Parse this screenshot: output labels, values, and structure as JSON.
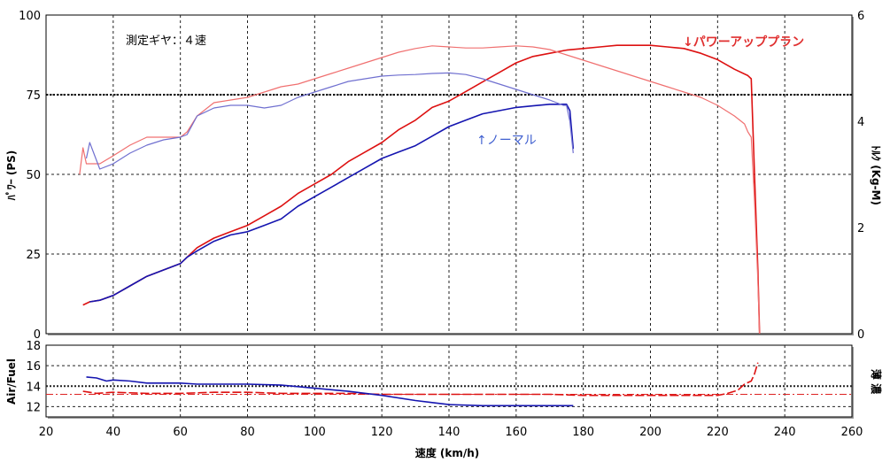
{
  "chart_data": [
    {
      "type": "line",
      "title": "",
      "gear_label": "測定ギヤ：４速",
      "xlabel": "速度 (km/h)",
      "ylabel_left": "ﾊﾟﾜｰ (PS)",
      "ylabel_right": "ﾄﾙｸ (Kg-M)",
      "xlim": [
        20,
        260
      ],
      "xticks": [
        20,
        40,
        60,
        80,
        100,
        120,
        140,
        160,
        180,
        200,
        220,
        240,
        260
      ],
      "ylim_left": [
        0,
        100
      ],
      "yticks_left": [
        0,
        25,
        50,
        75,
        100
      ],
      "ylim_right": [
        0,
        6
      ],
      "yticks_right": [
        0,
        2,
        4,
        6
      ],
      "grid": true,
      "reference_line_left": 75,
      "annotations": {
        "power_up": "↓パワーアッププラン",
        "normal": "↑ノーマル"
      },
      "colors": {
        "power_up": "#dd1111",
        "power_up_light": "#f07070",
        "normal": "#1515b0",
        "normal_light": "#7070d0"
      },
      "series": [
        {
          "name": "パワーアッププラン",
          "quantity": "power",
          "axis": "left",
          "x": [
            31,
            33,
            36,
            40,
            45,
            50,
            55,
            60,
            62,
            65,
            70,
            75,
            80,
            85,
            90,
            95,
            100,
            105,
            110,
            115,
            120,
            125,
            130,
            135,
            140,
            145,
            150,
            155,
            160,
            165,
            170,
            175,
            180,
            185,
            190,
            195,
            200,
            205,
            210,
            215,
            220,
            225,
            229,
            230,
            231,
            232,
            232.5
          ],
          "y": [
            9,
            10,
            10.5,
            12,
            15,
            18,
            20,
            22,
            24,
            27,
            30,
            32,
            34,
            37,
            40,
            44,
            47,
            50,
            54,
            57,
            60,
            64,
            67,
            71,
            73,
            76,
            79,
            82,
            85,
            87,
            88,
            89,
            89.5,
            90,
            90.5,
            90.5,
            90.5,
            90,
            89.5,
            88,
            86,
            83,
            81,
            80,
            50,
            20,
            0
          ]
        },
        {
          "name": "ノーマル",
          "quantity": "power",
          "axis": "left",
          "x": [
            33,
            36,
            40,
            45,
            50,
            55,
            60,
            62,
            65,
            70,
            75,
            80,
            85,
            90,
            95,
            100,
            105,
            110,
            115,
            120,
            125,
            130,
            135,
            140,
            145,
            150,
            155,
            160,
            165,
            170,
            175,
            176,
            177
          ],
          "y": [
            10,
            10.5,
            12,
            15,
            18,
            20,
            22,
            24,
            26,
            29,
            31,
            32,
            34,
            36,
            40,
            43,
            46,
            49,
            52,
            55,
            57,
            59,
            62,
            65,
            67,
            69,
            70,
            71,
            71.5,
            72,
            72,
            70,
            58
          ]
        },
        {
          "name": "パワーアッププラン",
          "quantity": "torque",
          "axis": "right",
          "x": [
            30,
            31,
            32,
            33,
            36,
            40,
            45,
            50,
            55,
            60,
            62,
            65,
            70,
            75,
            80,
            85,
            90,
            95,
            100,
            105,
            110,
            115,
            120,
            125,
            130,
            135,
            140,
            145,
            150,
            155,
            160,
            165,
            170,
            175,
            180,
            185,
            190,
            195,
            200,
            205,
            210,
            215,
            220,
            225,
            228,
            229,
            230,
            231,
            232,
            232.5
          ],
          "y": [
            3.0,
            3.5,
            3.2,
            3.2,
            3.2,
            3.35,
            3.55,
            3.7,
            3.7,
            3.7,
            3.8,
            4.1,
            4.35,
            4.4,
            4.45,
            4.55,
            4.65,
            4.7,
            4.8,
            4.9,
            5.0,
            5.1,
            5.2,
            5.3,
            5.37,
            5.42,
            5.4,
            5.38,
            5.38,
            5.4,
            5.42,
            5.4,
            5.35,
            5.25,
            5.15,
            5.05,
            4.95,
            4.85,
            4.75,
            4.65,
            4.55,
            4.45,
            4.3,
            4.1,
            3.95,
            3.8,
            3.7,
            2.5,
            1.0,
            0
          ]
        },
        {
          "name": "ノーマル",
          "quantity": "torque",
          "axis": "right",
          "x": [
            32,
            33,
            36,
            40,
            45,
            50,
            55,
            60,
            62,
            65,
            70,
            75,
            80,
            85,
            90,
            95,
            100,
            105,
            110,
            115,
            120,
            125,
            130,
            135,
            140,
            145,
            150,
            155,
            160,
            165,
            170,
            174,
            175,
            176,
            177
          ],
          "y": [
            3.3,
            3.6,
            3.1,
            3.2,
            3.4,
            3.55,
            3.65,
            3.7,
            3.75,
            4.1,
            4.25,
            4.3,
            4.3,
            4.25,
            4.3,
            4.45,
            4.55,
            4.65,
            4.75,
            4.8,
            4.85,
            4.87,
            4.88,
            4.9,
            4.91,
            4.88,
            4.8,
            4.7,
            4.6,
            4.5,
            4.4,
            4.3,
            4.3,
            4.0,
            3.4
          ]
        }
      ]
    },
    {
      "type": "line",
      "title": "",
      "ylabel_left": "Air/Fuel",
      "ylabel_right": "薄 濃",
      "xlim": [
        20,
        260
      ],
      "ylim": [
        11,
        18
      ],
      "yticks": [
        12,
        14,
        16,
        18
      ],
      "reference_line": 13.2,
      "grid": true,
      "series": [
        {
          "name": "パワーアッププラン",
          "x": [
            31,
            35,
            40,
            50,
            60,
            70,
            80,
            90,
            100,
            110,
            120,
            130,
            140,
            150,
            160,
            170,
            180,
            190,
            200,
            210,
            220,
            223,
            226,
            228,
            230,
            231,
            232
          ],
          "y": [
            13.5,
            13.3,
            13.4,
            13.3,
            13.3,
            13.4,
            13.4,
            13.3,
            13.3,
            13.3,
            13.2,
            13.2,
            13.2,
            13.2,
            13.2,
            13.2,
            13.1,
            13.1,
            13.1,
            13.1,
            13.1,
            13.3,
            13.6,
            14.2,
            14.5,
            15.2,
            16.3
          ]
        },
        {
          "name": "ノーマル",
          "x": [
            32,
            35,
            38,
            40,
            45,
            50,
            55,
            60,
            65,
            70,
            80,
            90,
            100,
            110,
            120,
            130,
            135,
            140,
            150,
            160,
            170,
            177
          ],
          "y": [
            14.9,
            14.8,
            14.5,
            14.6,
            14.5,
            14.3,
            14.3,
            14.3,
            14.2,
            14.2,
            14.2,
            14.1,
            13.8,
            13.5,
            13.1,
            12.6,
            12.4,
            12.2,
            12.1,
            12.1,
            12.1,
            12.1
          ]
        }
      ]
    }
  ]
}
